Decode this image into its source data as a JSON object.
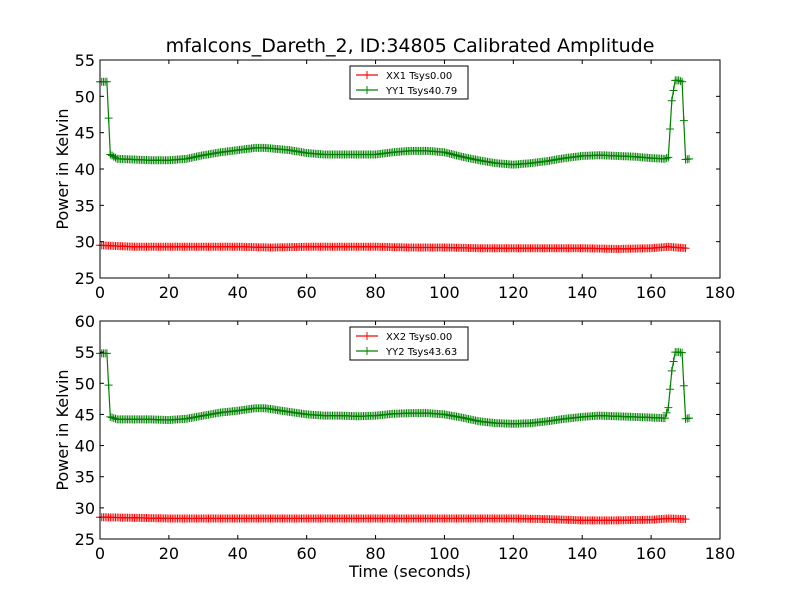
{
  "figure": {
    "title": "mfalcons_Dareth_2, ID:34805 Calibrated Amplitude"
  },
  "chart_data": [
    {
      "type": "line",
      "xlabel": "",
      "ylabel": "Power in Kelvin",
      "xlim": [
        0,
        180
      ],
      "ylim": [
        25,
        55
      ],
      "xticks": [
        "0",
        "20",
        "40",
        "60",
        "80",
        "100",
        "120",
        "140",
        "160",
        "180"
      ],
      "yticks": [
        "25",
        "30",
        "35",
        "40",
        "45",
        "50",
        "55"
      ],
      "legend_position": "top-center",
      "grid": false,
      "series": [
        {
          "name": "XX1 Tsys0.00",
          "color": "#ff0000",
          "marker": "plus",
          "x": [
            0,
            10,
            20,
            30,
            40,
            50,
            60,
            70,
            80,
            90,
            100,
            110,
            120,
            130,
            140,
            150,
            160,
            165,
            170
          ],
          "y": [
            29.5,
            29.3,
            29.3,
            29.3,
            29.3,
            29.2,
            29.3,
            29.3,
            29.3,
            29.2,
            29.2,
            29.1,
            29.1,
            29.1,
            29.1,
            29.0,
            29.1,
            29.3,
            29.1
          ]
        },
        {
          "name": "YY1 Tsys40.79",
          "color": "#008000",
          "marker": "plus",
          "x": [
            0,
            2,
            3,
            5,
            10,
            15,
            20,
            25,
            30,
            35,
            40,
            45,
            48,
            55,
            60,
            65,
            70,
            75,
            80,
            85,
            90,
            95,
            100,
            105,
            110,
            115,
            120,
            125,
            130,
            135,
            140,
            145,
            150,
            155,
            160,
            164,
            165,
            166,
            167,
            168,
            169,
            170,
            171
          ],
          "y": [
            52.0,
            52.0,
            42.0,
            41.4,
            41.3,
            41.2,
            41.2,
            41.4,
            41.9,
            42.3,
            42.6,
            42.9,
            42.9,
            42.6,
            42.2,
            42.0,
            42.0,
            42.0,
            42.0,
            42.3,
            42.5,
            42.5,
            42.3,
            41.7,
            41.2,
            40.8,
            40.6,
            40.8,
            41.1,
            41.5,
            41.8,
            41.9,
            41.8,
            41.7,
            41.5,
            41.4,
            41.6,
            49.4,
            52.2,
            52.2,
            52.0,
            41.3,
            41.4
          ]
        }
      ]
    },
    {
      "type": "line",
      "xlabel": "Time (seconds)",
      "ylabel": "Power in Kelvin",
      "xlim": [
        0,
        180
      ],
      "ylim": [
        25,
        60
      ],
      "xticks": [
        "0",
        "20",
        "40",
        "60",
        "80",
        "100",
        "120",
        "140",
        "160",
        "180"
      ],
      "yticks": [
        "25",
        "30",
        "35",
        "40",
        "45",
        "50",
        "55",
        "60"
      ],
      "legend_position": "top-center",
      "grid": false,
      "series": [
        {
          "name": "XX2 Tsys0.00",
          "color": "#ff0000",
          "marker": "plus",
          "x": [
            0,
            10,
            20,
            30,
            40,
            50,
            60,
            70,
            80,
            90,
            100,
            110,
            120,
            130,
            140,
            150,
            160,
            165,
            170
          ],
          "y": [
            28.5,
            28.4,
            28.3,
            28.3,
            28.3,
            28.3,
            28.3,
            28.3,
            28.3,
            28.3,
            28.3,
            28.3,
            28.3,
            28.2,
            28.0,
            28.0,
            28.1,
            28.3,
            28.2
          ]
        },
        {
          "name": "YY2 Tsys43.63",
          "color": "#008000",
          "marker": "plus",
          "x": [
            0,
            2,
            3,
            5,
            10,
            15,
            20,
            25,
            30,
            35,
            40,
            45,
            48,
            55,
            60,
            65,
            70,
            75,
            80,
            85,
            90,
            95,
            100,
            105,
            110,
            115,
            120,
            125,
            130,
            135,
            140,
            145,
            150,
            155,
            160,
            164,
            165,
            166,
            167,
            168,
            169,
            170,
            171
          ],
          "y": [
            54.8,
            54.8,
            44.6,
            44.2,
            44.2,
            44.2,
            44.1,
            44.3,
            44.8,
            45.3,
            45.6,
            46.0,
            46.0,
            45.4,
            45.0,
            44.8,
            44.8,
            44.7,
            44.8,
            45.1,
            45.2,
            45.2,
            45.0,
            44.5,
            43.9,
            43.6,
            43.5,
            43.6,
            43.9,
            44.3,
            44.6,
            44.8,
            44.7,
            44.6,
            44.5,
            44.4,
            46.1,
            52.0,
            55.0,
            55.0,
            54.9,
            44.3,
            44.4
          ]
        }
      ]
    }
  ]
}
